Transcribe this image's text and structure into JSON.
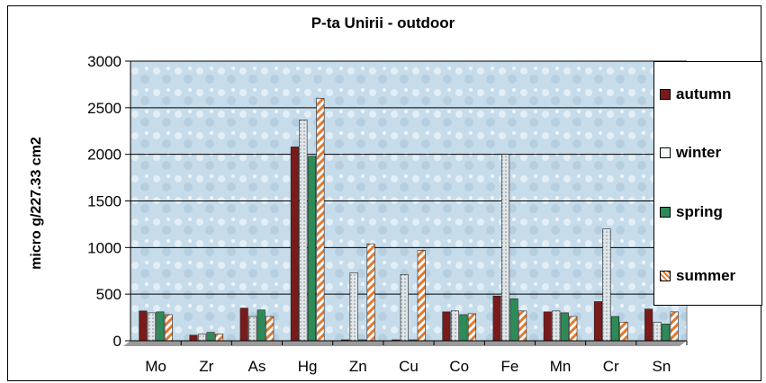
{
  "chart_data": {
    "type": "bar",
    "title": "P-ta Unirii - outdoor",
    "ylabel": "micro g/227.33 cm2",
    "xlabel": "",
    "ylim": [
      0,
      3000
    ],
    "yticks": [
      0,
      500,
      1000,
      1500,
      2000,
      2500,
      3000
    ],
    "categories": [
      "Mo",
      "Zr",
      "As",
      "Hg",
      "Zn",
      "Cu",
      "Co",
      "Fe",
      "Mn",
      "Cr",
      "Sn"
    ],
    "series": [
      {
        "name": "autumn",
        "color": "#7a1a1a",
        "values": [
          320,
          60,
          350,
          2080,
          10,
          10,
          310,
          480,
          310,
          420,
          340
        ]
      },
      {
        "name": "winter",
        "color": "#ddeef2",
        "values": [
          300,
          70,
          260,
          2370,
          730,
          710,
          320,
          2000,
          320,
          1200,
          200
        ]
      },
      {
        "name": "spring",
        "color": "#2e8b57",
        "values": [
          310,
          90,
          330,
          1980,
          10,
          10,
          280,
          450,
          300,
          260,
          180
        ]
      },
      {
        "name": "summer",
        "color": "#e8a060",
        "values": [
          280,
          70,
          260,
          2600,
          1040,
          970,
          290,
          320,
          260,
          200,
          310
        ]
      }
    ],
    "legend_position": "right",
    "grid": true
  }
}
